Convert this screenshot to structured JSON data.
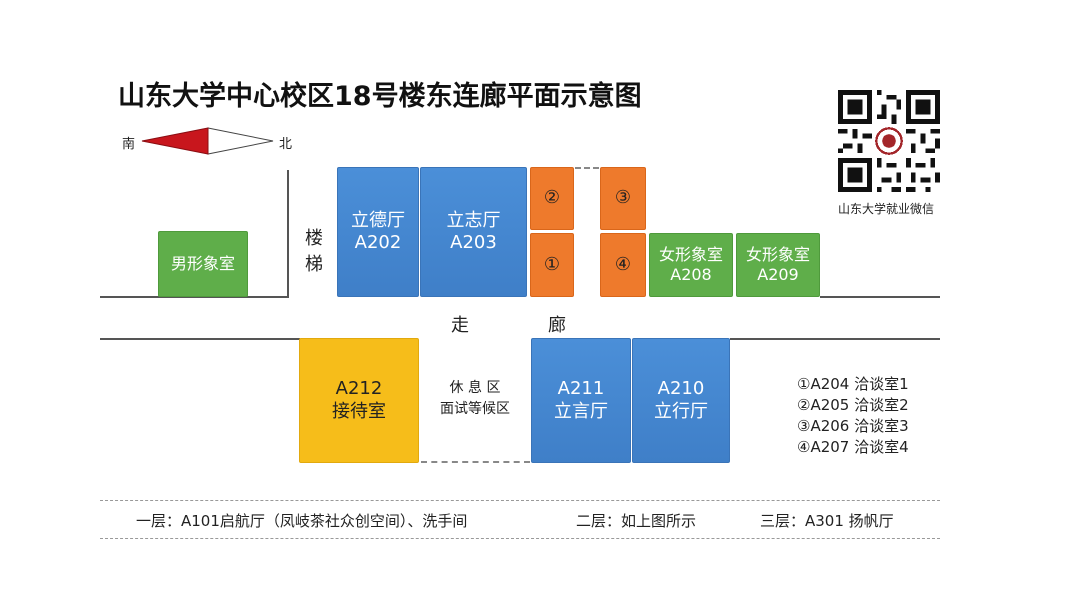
{
  "title": "山东大学中心校区18号楼东连廊平面示意图",
  "compass": {
    "south": "南",
    "north": "北"
  },
  "qr_caption": "山东大学就业微信",
  "rooms": {
    "male_image": "男形象室",
    "stairs": "楼梯",
    "lide": {
      "name": "立德厅",
      "code": "A202"
    },
    "lizhi": {
      "name": "立志厅",
      "code": "A203"
    },
    "circ1": "①",
    "circ2": "②",
    "circ3": "③",
    "circ4": "④",
    "female208": {
      "name": "女形象室",
      "code": "A208"
    },
    "female209": {
      "name": "女形象室",
      "code": "A209"
    },
    "corridor_left": "走",
    "corridor_right": "廊",
    "reception": {
      "code": "A212",
      "name": "接待室"
    },
    "rest_area": {
      "line1": "休 息 区",
      "line2": "面试等候区"
    },
    "liyan": {
      "code": "A211",
      "name": "立言厅"
    },
    "lixing": {
      "code": "A210",
      "name": "立行厅"
    }
  },
  "legend": [
    "①A204 洽谈室1",
    "②A205 洽谈室2",
    "③A206 洽谈室3",
    "④A207 洽谈室4"
  ],
  "footer": {
    "floor1": "一层：A101启航厅（凤岐茶社众创空间）、洗手间",
    "floor2": "二层：如上图所示",
    "floor3": "三层：A301 扬帆厅"
  },
  "colors": {
    "blue": "#3f7fc8",
    "green": "#5fae4a",
    "orange": "#ee7a2c",
    "yellow": "#f6bd1a",
    "arrow_red": "#c8161d"
  }
}
